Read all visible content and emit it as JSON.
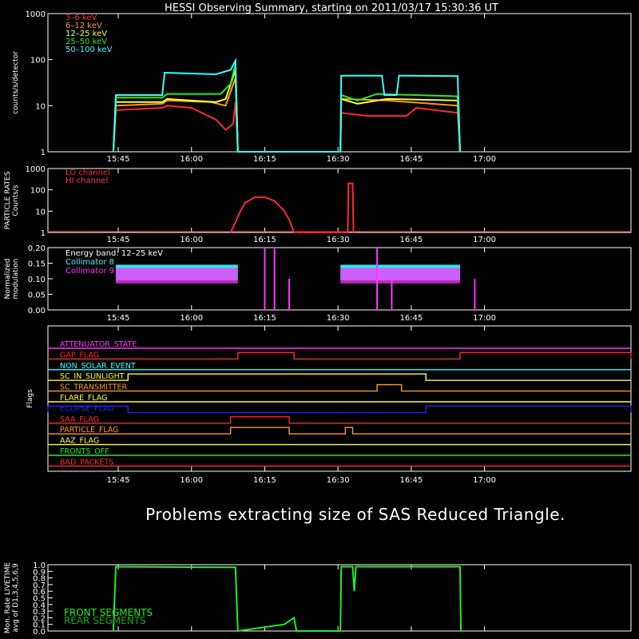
{
  "title": "HESSI Observing Summary, starting on 2011/03/17 15:30:36 UT",
  "message": "Problems extracting size of SAS Reduced Triangle.",
  "x_ticks": [
    "15:45",
    "16:00",
    "16:15",
    "16:30",
    "16:45",
    "17:00"
  ],
  "colors": {
    "3-6": "#ff2a2a",
    "6-12": "#ff9a1a",
    "12-25": "#ffff33",
    "25-50": "#22ee22",
    "50-100": "#33ffff",
    "magenta": "#ff33ff",
    "blue": "#2222ff",
    "axis": "#ffffff"
  },
  "chart_data": [
    {
      "type": "line",
      "ylabel": "counts/s/detector",
      "yscale": "log",
      "ylim": [
        1,
        1000
      ],
      "y_ticks": [
        "1",
        "10",
        "100",
        "1000"
      ],
      "x_range": [
        "15:30:36",
        "17:30:00"
      ],
      "series": [
        {
          "name": "3–6 keV",
          "color_key": "3-6",
          "points": [
            [
              "15:44:00",
              1
            ],
            [
              "15:44:30",
              8
            ],
            [
              "15:54:00",
              9
            ],
            [
              "15:55:00",
              10
            ],
            [
              "16:00:00",
              9
            ],
            [
              "16:05:00",
              5
            ],
            [
              "16:07:00",
              3
            ],
            [
              "16:08:30",
              4
            ],
            [
              "16:09:00",
              12
            ],
            [
              "16:09:30",
              1
            ],
            [
              "16:30:30",
              1
            ],
            [
              "16:30:40",
              7
            ],
            [
              "16:36:00",
              6
            ],
            [
              "16:44:00",
              6
            ],
            [
              "16:46:00",
              9
            ],
            [
              "16:54:30",
              7
            ],
            [
              "16:55:00",
              1
            ]
          ]
        },
        {
          "name": "6–12 keV",
          "color_key": "6-12",
          "points": [
            [
              "15:44:00",
              1
            ],
            [
              "15:44:30",
              10
            ],
            [
              "15:54:00",
              11
            ],
            [
              "15:55:00",
              13
            ],
            [
              "16:04:00",
              12
            ],
            [
              "16:07:00",
              10
            ],
            [
              "16:09:00",
              40
            ],
            [
              "16:09:30",
              1
            ],
            [
              "16:30:30",
              1
            ],
            [
              "16:30:40",
              14
            ],
            [
              "16:40:00",
              13
            ],
            [
              "16:54:30",
              10
            ],
            [
              "16:55:00",
              1
            ]
          ]
        },
        {
          "name": "12–25 keV",
          "color_key": "12-25",
          "points": [
            [
              "15:44:00",
              1
            ],
            [
              "15:44:30",
              12
            ],
            [
              "15:54:00",
              12
            ],
            [
              "15:55:00",
              14
            ],
            [
              "16:05:00",
              12
            ],
            [
              "16:07:00",
              14
            ],
            [
              "16:09:00",
              60
            ],
            [
              "16:09:30",
              1
            ],
            [
              "16:30:30",
              1
            ],
            [
              "16:30:40",
              14
            ],
            [
              "16:34:00",
              11
            ],
            [
              "16:40:00",
              14
            ],
            [
              "16:54:30",
              13
            ],
            [
              "16:55:00",
              1
            ]
          ]
        },
        {
          "name": "25–50 keV",
          "color_key": "25-50",
          "points": [
            [
              "15:44:00",
              1
            ],
            [
              "15:44:30",
              15
            ],
            [
              "15:54:00",
              15
            ],
            [
              "15:55:00",
              18
            ],
            [
              "16:06:00",
              18
            ],
            [
              "16:08:00",
              30
            ],
            [
              "16:09:00",
              80
            ],
            [
              "16:09:30",
              1
            ],
            [
              "16:30:30",
              1
            ],
            [
              "16:30:40",
              17
            ],
            [
              "16:34:00",
              13
            ],
            [
              "16:38:00",
              18
            ],
            [
              "16:54:30",
              16
            ],
            [
              "16:55:00",
              1
            ]
          ]
        },
        {
          "name": "50–100 keV",
          "color_key": "50-100",
          "points": [
            [
              "15:44:00",
              1
            ],
            [
              "15:44:30",
              17
            ],
            [
              "15:54:00",
              17
            ],
            [
              "15:54:30",
              52
            ],
            [
              "16:05:00",
              48
            ],
            [
              "16:08:00",
              60
            ],
            [
              "16:09:00",
              95
            ],
            [
              "16:09:30",
              1
            ],
            [
              "16:30:30",
              1
            ],
            [
              "16:30:40",
              45
            ],
            [
              "16:39:00",
              45
            ],
            [
              "16:39:30",
              17
            ],
            [
              "16:42:00",
              17
            ],
            [
              "16:42:30",
              45
            ],
            [
              "16:54:30",
              44
            ],
            [
              "16:55:00",
              1
            ]
          ]
        }
      ]
    },
    {
      "type": "line",
      "ylabel": "PARTICLE RATES Counts/s",
      "yscale": "log",
      "ylim": [
        1,
        1000
      ],
      "y_ticks": [
        "1",
        "10",
        "100",
        "1000"
      ],
      "series": [
        {
          "name": "LO channel",
          "color_key": "3-6",
          "points": [
            [
              "16:08:00",
              1
            ],
            [
              "16:09:00",
              3
            ],
            [
              "16:10:00",
              10
            ],
            [
              "16:11:00",
              25
            ],
            [
              "16:13:00",
              45
            ],
            [
              "16:15:00",
              45
            ],
            [
              "16:17:00",
              30
            ],
            [
              "16:19:00",
              10
            ],
            [
              "16:20:00",
              4
            ],
            [
              "16:21:00",
              1
            ],
            [
              "16:32:00",
              1
            ],
            [
              "16:32:10",
              200
            ],
            [
              "16:33:00",
              200
            ],
            [
              "16:33:10",
              1
            ]
          ]
        },
        {
          "name": "HI channel",
          "color_key": "magenta",
          "points": []
        }
      ]
    },
    {
      "type": "line",
      "ylabel": "Normalized modulation",
      "ylim": [
        0,
        0.2
      ],
      "y_ticks": [
        "0.00",
        "0.05",
        "0.10",
        "0.15",
        "0.20"
      ],
      "annotation": "Energy band: 12–25 keV",
      "series": [
        {
          "name": "Collimator 8",
          "color_key": "50-100",
          "level": 0.12,
          "segments": [
            [
              "15:44:30",
              "16:09:30"
            ],
            [
              "16:30:30",
              "16:55:00"
            ]
          ]
        },
        {
          "name": "Collimator 9",
          "color_key": "magenta",
          "level": 0.11,
          "segments": [
            [
              "15:44:30",
              "16:09:30"
            ],
            [
              "16:30:30",
              "16:55:00"
            ]
          ]
        }
      ]
    },
    {
      "type": "table",
      "ylabel": "Flags",
      "flags": [
        {
          "name": "ATTENUATOR_STATE",
          "color_key": "magenta",
          "on": []
        },
        {
          "name": "GAP_FLAG",
          "color_key": "3-6",
          "on": [
            [
              "16:09:30",
              "16:21:00"
            ],
            [
              "16:55:00",
              "17:30:00"
            ]
          ]
        },
        {
          "name": "NON_SOLAR_EVENT",
          "color_key": "50-100",
          "on": []
        },
        {
          "name": "SC_IN_SUNLIGHT",
          "color_key": "12-25",
          "on": [
            [
              "15:47:00",
              "16:48:00"
            ]
          ]
        },
        {
          "name": "SC_TRANSMITTER",
          "color_key": "6-12",
          "on": [
            [
              "16:38:00",
              "16:43:00"
            ]
          ]
        },
        {
          "name": "FLARE_FLAG",
          "color_key": "12-25",
          "on": []
        },
        {
          "name": "ECLIPSE_FLAG",
          "color_key": "blue",
          "on": [
            [
              "15:30:36",
              "15:47:00"
            ],
            [
              "16:48:00",
              "17:30:00"
            ]
          ]
        },
        {
          "name": "SAA_FLAG",
          "color_key": "3-6",
          "on": [
            [
              "16:08:00",
              "16:20:00"
            ]
          ]
        },
        {
          "name": "PARTICLE_FLAG",
          "color_key": "6-12",
          "on": [
            [
              "16:08:00",
              "16:20:00"
            ],
            [
              "16:31:30",
              "16:33:00"
            ]
          ]
        },
        {
          "name": "AAZ_FLAG",
          "color_key": "12-25",
          "on": []
        },
        {
          "name": "FRONTS_OFF",
          "color_key": "25-50",
          "on": []
        },
        {
          "name": "BAD_PACKETS",
          "color_key": "3-6",
          "on": []
        }
      ]
    },
    {
      "type": "line",
      "ylabel": "Mon. Rate LIVETIME avg of D1,3,4,5,6,9",
      "ylim": [
        0,
        1.0
      ],
      "y_ticks": [
        "0.0",
        "0.1",
        "0.2",
        "0.3",
        "0.4",
        "0.5",
        "0.6",
        "0.7",
        "0.8",
        "0.9",
        "1.0"
      ],
      "series": [
        {
          "name": "FRONT SEGMENTS",
          "color_key": "25-50",
          "points": [
            [
              "15:44:00",
              0
            ],
            [
              "15:44:30",
              0.97
            ],
            [
              "16:09:00",
              0.96
            ],
            [
              "16:09:30",
              0
            ],
            [
              "16:19:00",
              0.1
            ],
            [
              "16:21:00",
              0.2
            ],
            [
              "16:21:30",
              0
            ],
            [
              "16:30:30",
              0
            ],
            [
              "16:30:40",
              0.97
            ],
            [
              "16:33:00",
              0.97
            ],
            [
              "16:33:20",
              0.6
            ],
            [
              "16:33:40",
              0.97
            ],
            [
              "16:55:00",
              0.97
            ],
            [
              "16:55:10",
              0
            ]
          ]
        },
        {
          "name": "REAR SEGMENTS",
          "color_key": "25-50",
          "points": []
        }
      ]
    }
  ]
}
